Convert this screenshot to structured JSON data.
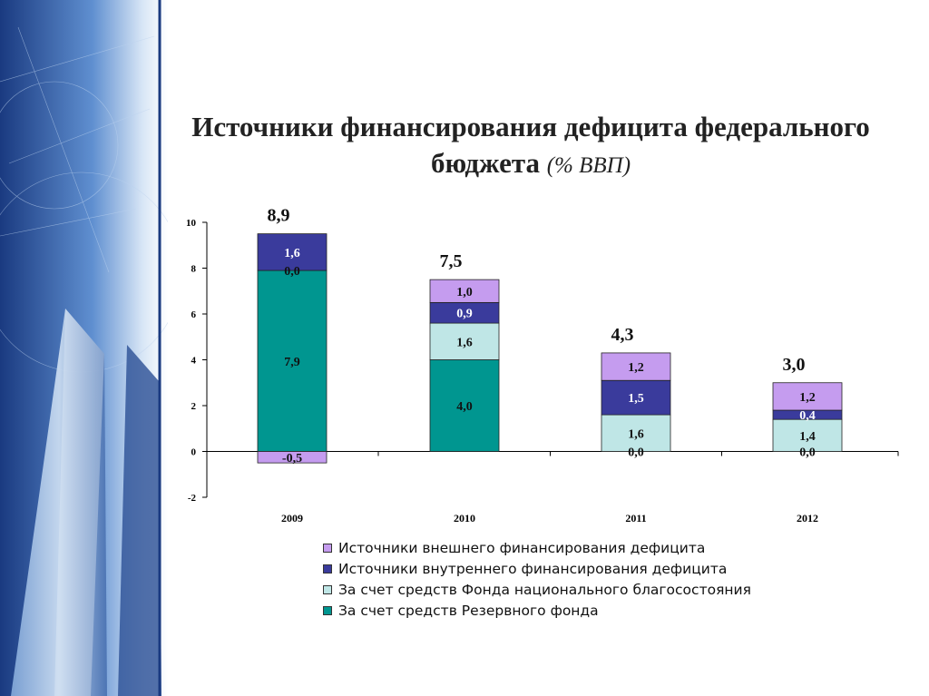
{
  "slide": {
    "title_main": "Источники финансирования дефицита федерального бюджета",
    "title_unit": "(% ВВП)"
  },
  "chart_data": {
    "type": "bar",
    "stacked": true,
    "categories": [
      "2009",
      "2010",
      "2011",
      "2012"
    ],
    "ylim": [
      -2,
      10
    ],
    "yticks": [
      10,
      8,
      6,
      4,
      2,
      0,
      -2
    ],
    "totals": [
      "8,9",
      "7,5",
      "4,3",
      "3,0"
    ],
    "series": [
      {
        "name": "За счет средств Резервного фонда",
        "color": "#009690",
        "values": [
          7.9,
          4.0,
          0.0,
          0.0
        ],
        "labels": [
          "7,9",
          "4,0",
          "0,0",
          "0,0"
        ]
      },
      {
        "name": "За счет средств Фонда национального благосостояния",
        "color": "#bfe6e6",
        "values": [
          0.0,
          1.6,
          1.6,
          1.4
        ],
        "labels": [
          "0,0",
          "1,6",
          "1,6",
          "1,4"
        ]
      },
      {
        "name": "Источники внутреннего финансирования дефицита",
        "color": "#3a3b9c",
        "values": [
          1.6,
          0.9,
          1.5,
          0.4
        ],
        "labels": [
          "1,6",
          "0,9",
          "1,5",
          "0,4"
        ]
      },
      {
        "name": "Источники внешнего финансирования дефицита",
        "color": "#c59cef",
        "values": [
          -0.5,
          1.0,
          1.2,
          1.2
        ],
        "labels": [
          "-0,5",
          "1,0",
          "1,2",
          "1,2"
        ]
      }
    ],
    "legend_order": [
      3,
      2,
      1,
      0
    ],
    "legend_position": "bottom",
    "grid": false
  },
  "colors": {
    "decor_dark": "#1d3f86",
    "decor_light": "#cfe0f4"
  }
}
